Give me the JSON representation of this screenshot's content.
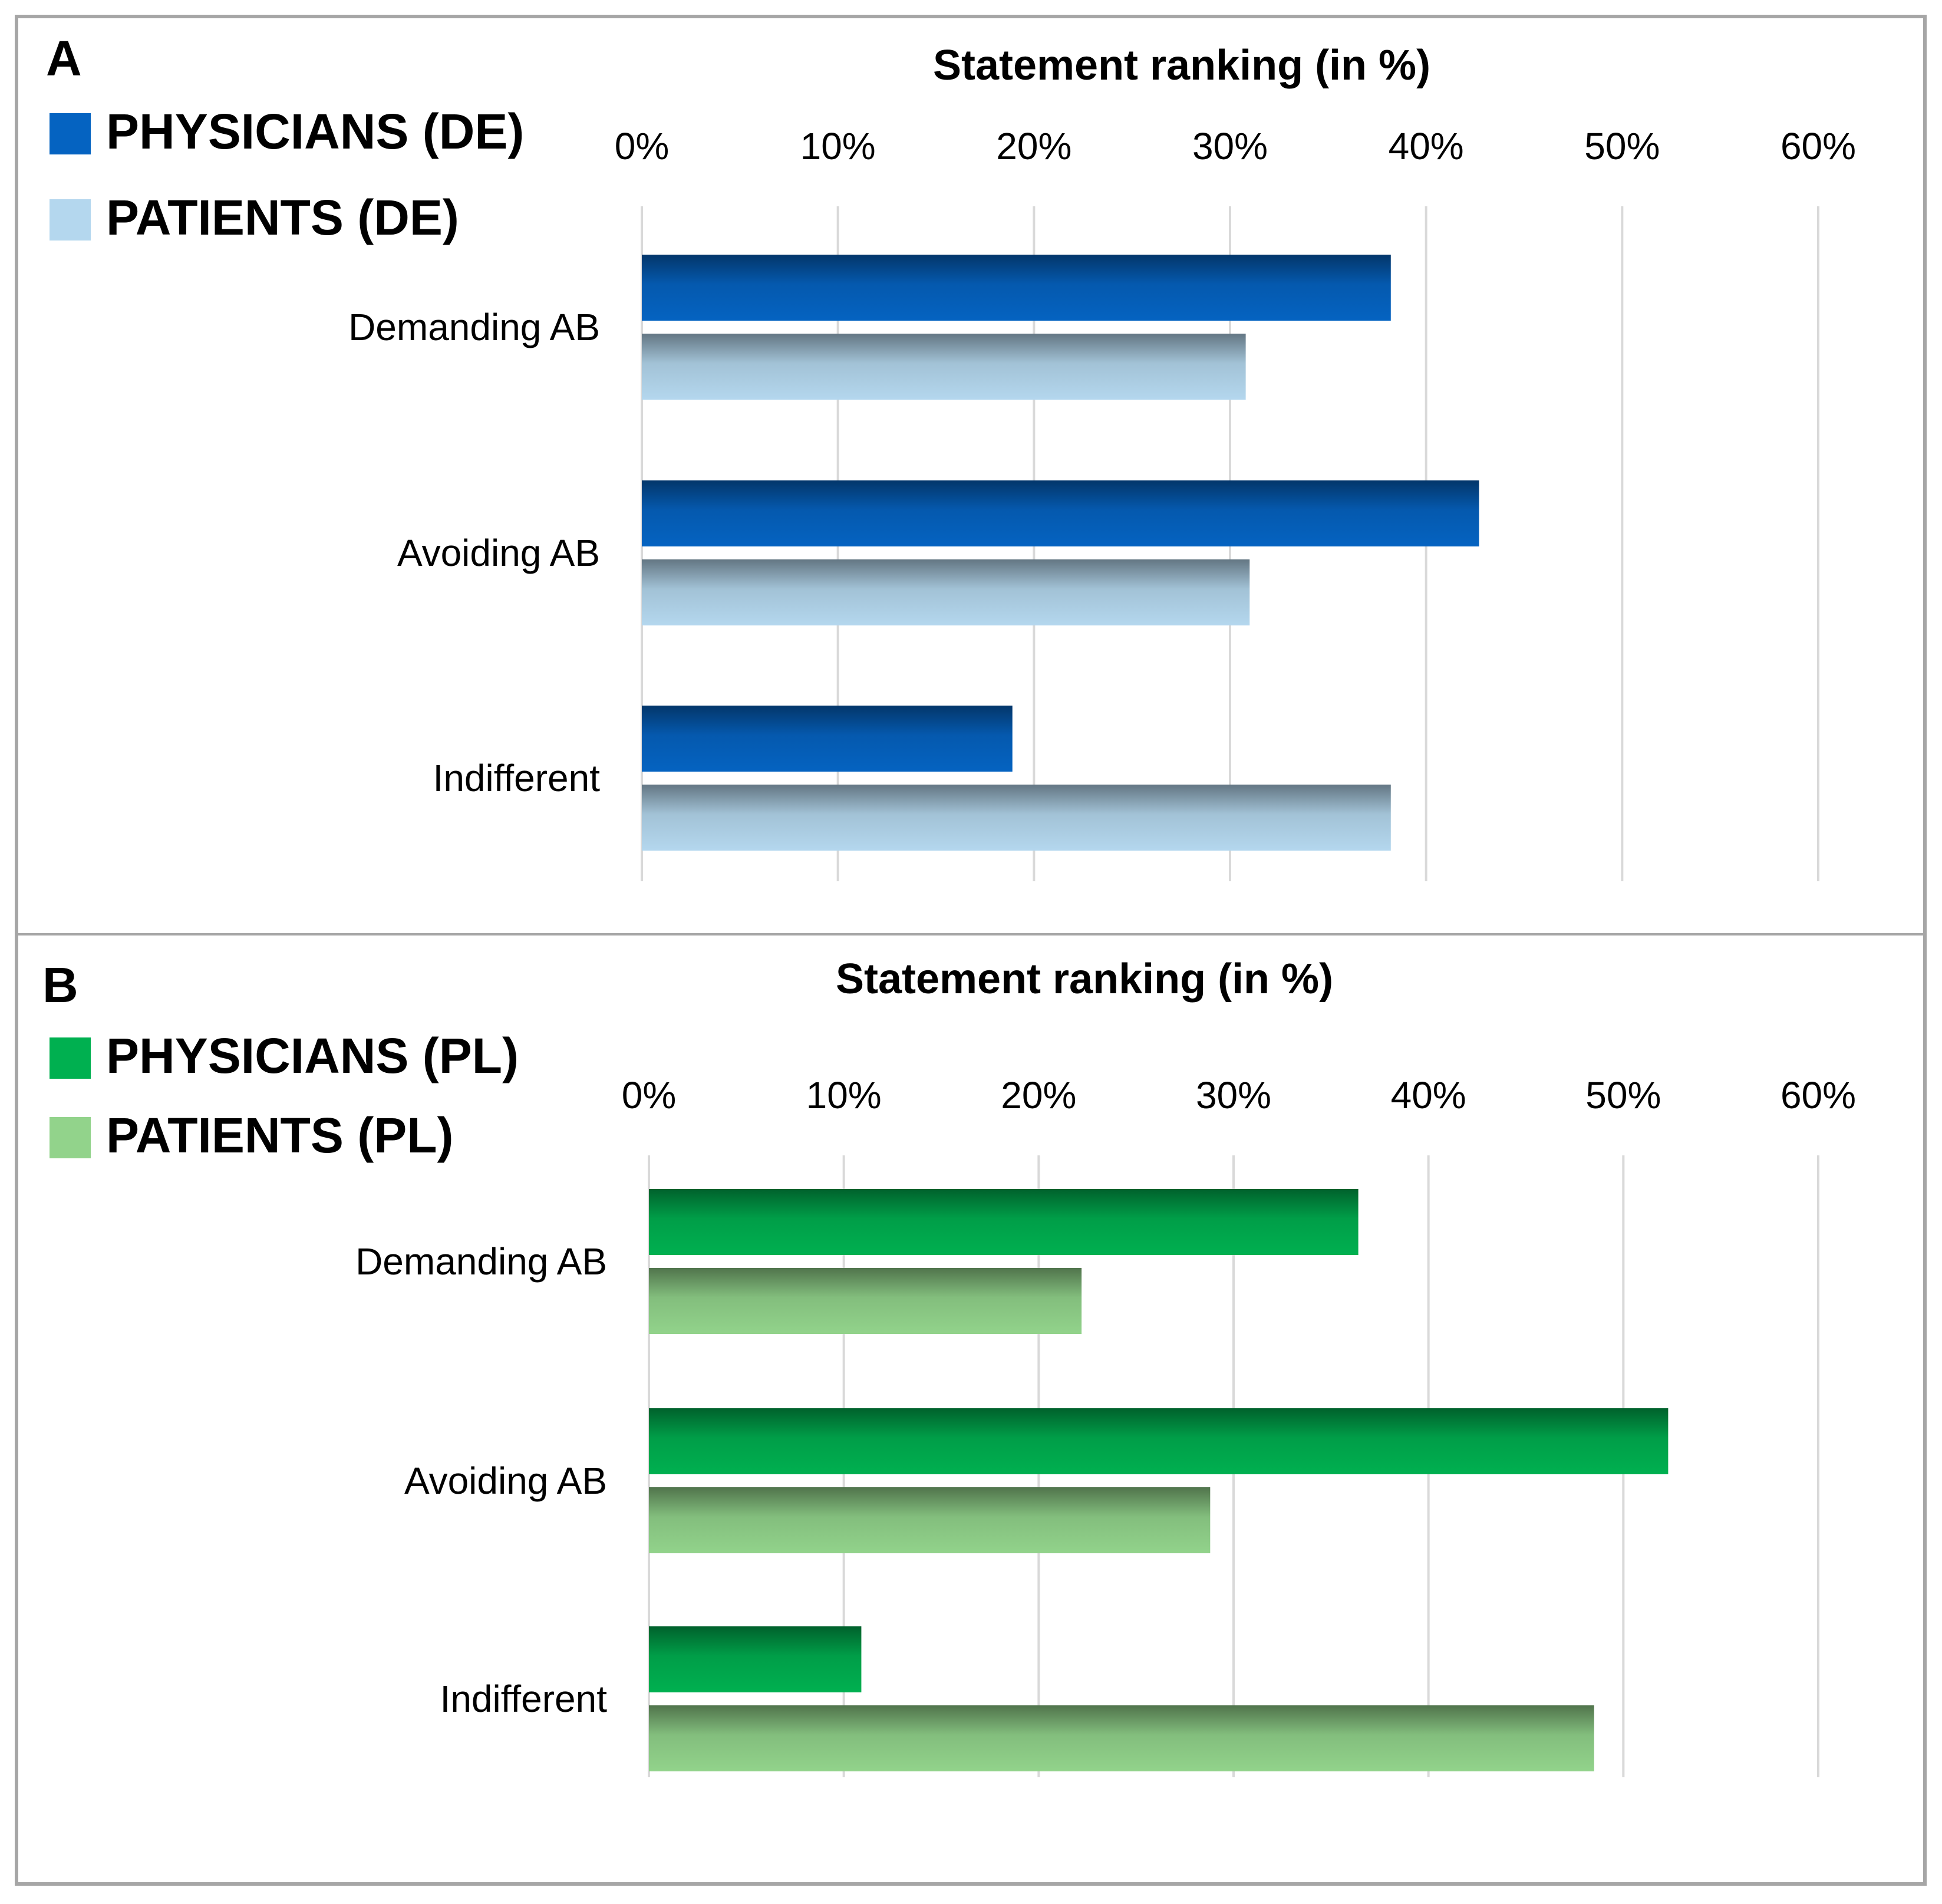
{
  "colors": {
    "physicians_de": "#0563c1",
    "patients_de": "#b4d7ee",
    "physicians_pl": "#00b050",
    "patients_pl": "#92d38b",
    "grid": "#d9d9d9",
    "frame": "#a6a6a6",
    "text": "#000000"
  },
  "chart_data": [
    {
      "type": "bar",
      "orientation": "horizontal",
      "panel_label": "A",
      "title": "Statement ranking (in %)",
      "xlabel": "Statement ranking (in %)",
      "ylabel": "",
      "xlim": [
        0,
        60
      ],
      "ticks": [
        0,
        10,
        20,
        30,
        40,
        50,
        60
      ],
      "tick_labels": [
        "0%",
        "10%",
        "20%",
        "30%",
        "40%",
        "50%",
        "60%"
      ],
      "grid": true,
      "legend_position": "top-left",
      "categories": [
        "Demanding AB",
        "Avoiding AB",
        "Indifferent"
      ],
      "series": [
        {
          "name": "PHYSICIANS (DE)",
          "color": "#0563c1",
          "values": [
            38.2,
            42.7,
            18.9
          ]
        },
        {
          "name": "PATIENTS (DE)",
          "color": "#b4d7ee",
          "values": [
            30.8,
            31.0,
            38.2
          ]
        }
      ]
    },
    {
      "type": "bar",
      "orientation": "horizontal",
      "panel_label": "B",
      "title": "Statement ranking (in %)",
      "xlabel": "Statement ranking (in %)",
      "ylabel": "",
      "xlim": [
        0,
        60
      ],
      "ticks": [
        0,
        10,
        20,
        30,
        40,
        50,
        60
      ],
      "tick_labels": [
        "0%",
        "10%",
        "20%",
        "30%",
        "40%",
        "50%",
        "60%"
      ],
      "grid": true,
      "legend_position": "top-left",
      "categories": [
        "Demanding AB",
        "Avoiding AB",
        "Indifferent"
      ],
      "series": [
        {
          "name": "PHYSICIANS (PL)",
          "color": "#00b050",
          "values": [
            36.4,
            52.3,
            10.9
          ]
        },
        {
          "name": "PATIENTS (PL)",
          "color": "#92d38b",
          "values": [
            22.2,
            28.8,
            48.5
          ]
        }
      ]
    }
  ]
}
